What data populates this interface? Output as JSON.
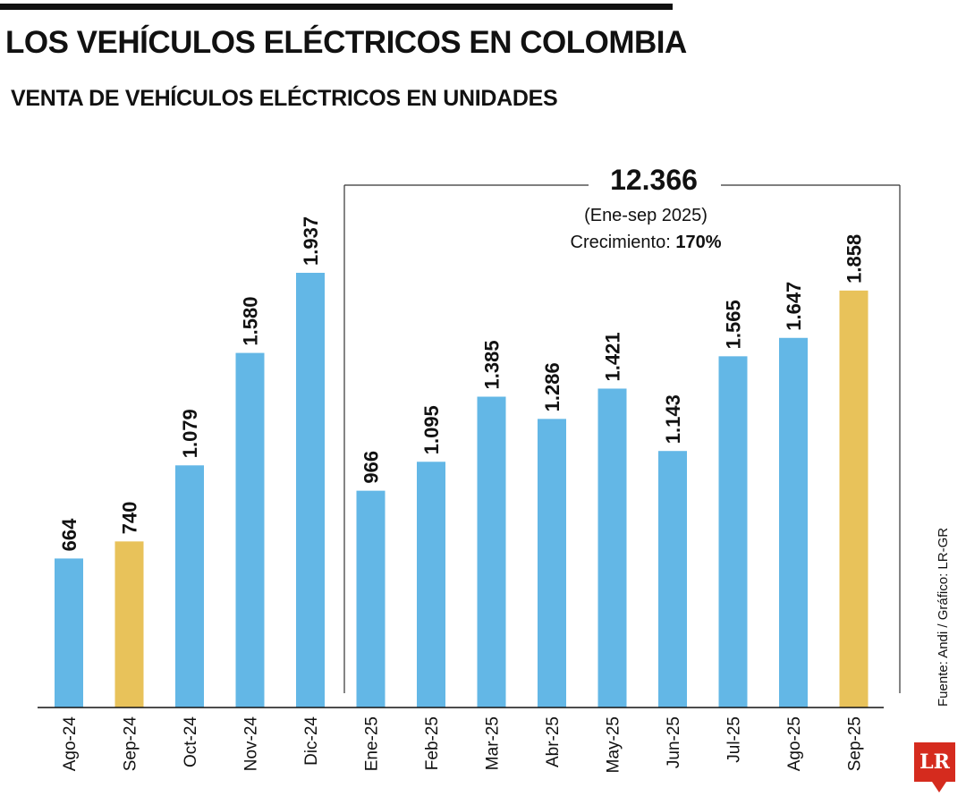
{
  "header": {
    "title": "LOS VEHÍCULOS ELÉCTRICOS EN COLOMBIA",
    "subtitle": "VENTA DE VEHÍCULOS ELÉCTRICOS EN UNIDADES"
  },
  "callout": {
    "total": "12.366",
    "period": "(Ene-sep 2025)",
    "growth_label": "Crecimiento: ",
    "growth_value": "170%"
  },
  "source": "Fuente: Andi / Gráfico: LR-GR",
  "logo": "LR",
  "colors": {
    "bar": "#63b7e6",
    "highlight": "#e8c25a",
    "text": "#111111"
  },
  "chart_data": {
    "type": "bar",
    "categories": [
      "Ago-24",
      "Sep-24",
      "Oct-24",
      "Nov-24",
      "Dic-24",
      "Ene-25",
      "Feb-25",
      "Mar-25",
      "Abr-25",
      "May-25",
      "Jun-25",
      "Jul-25",
      "Ago-25",
      "Sep-25"
    ],
    "values": [
      664,
      740,
      1079,
      1580,
      1937,
      966,
      1095,
      1385,
      1286,
      1421,
      1143,
      1565,
      1647,
      1858
    ],
    "labels": [
      "664",
      "740",
      "1.079",
      "1.580",
      "1.937",
      "966",
      "1.095",
      "1.385",
      "1.286",
      "1.421",
      "1.143",
      "1.565",
      "1.647",
      "1.858"
    ],
    "highlighted": [
      "Sep-24",
      "Sep-25"
    ],
    "title": "VENTA DE VEHÍCULOS ELÉCTRICOS EN UNIDADES",
    "xlabel": "",
    "ylabel": "",
    "ylim": [
      0,
      1937
    ],
    "grid": false,
    "legend": "none"
  }
}
